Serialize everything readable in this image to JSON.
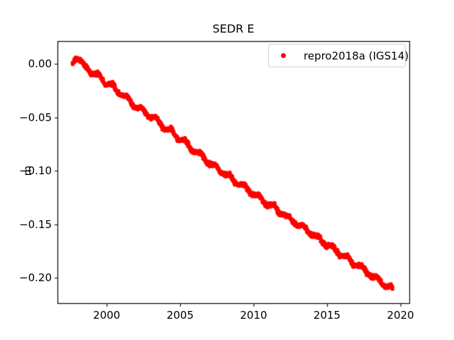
{
  "figure": {
    "background": "#ffffff",
    "text_color": "#000000"
  },
  "chart_data": {
    "type": "scatter",
    "title": "SEDR E",
    "xlabel": "",
    "ylabel": "m",
    "xlim": [
      1996.65,
      2020.6
    ],
    "ylim": [
      -0.2238,
      0.0215
    ],
    "xticks": [
      2000,
      2005,
      2010,
      2015,
      2020
    ],
    "xtick_labels": [
      "2000",
      "2005",
      "2010",
      "2015",
      "2020"
    ],
    "yticks": [
      0.0,
      -0.05,
      -0.1,
      -0.15,
      -0.2
    ],
    "ytick_labels": [
      "0.00",
      "−0.05",
      "−0.10",
      "−0.15",
      "−0.20"
    ],
    "grid": false,
    "legend": {
      "position": "upper right",
      "entries": [
        {
          "label": "repro2018a (IGS14)",
          "marker": "point",
          "color": "#ff0000"
        }
      ]
    },
    "series": [
      {
        "name": "repro2018a (IGS14)",
        "color": "#ff0000",
        "marker": "point",
        "x_range": [
          1997.7,
          2019.45
        ],
        "trend_m_per_year": -0.00993,
        "seasonal_amplitude_m": 0.0018,
        "noise_sigma_m": 0.0009,
        "points_per_year": 70,
        "trend_points": [
          [
            1997.7,
            0.0025
          ],
          [
            1997.95,
            0.0065
          ],
          [
            1998.2,
            0.002
          ],
          [
            1998.45,
            -0.002
          ],
          [
            1998.7,
            -0.003
          ],
          [
            1998.95,
            -0.008
          ],
          [
            1999.2,
            -0.011
          ],
          [
            1999.45,
            -0.0105
          ],
          [
            1999.7,
            -0.013
          ],
          [
            1999.95,
            -0.018
          ],
          [
            2000.2,
            -0.02
          ],
          [
            2000.45,
            -0.021
          ],
          [
            2000.7,
            -0.024
          ],
          [
            2000.95,
            -0.028
          ],
          [
            2001.2,
            -0.031
          ],
          [
            2001.45,
            -0.032
          ],
          [
            2001.7,
            -0.036
          ],
          [
            2001.95,
            -0.0395
          ],
          [
            2002.2,
            -0.042
          ],
          [
            2002.45,
            -0.043
          ],
          [
            2002.7,
            -0.046
          ],
          [
            2002.95,
            -0.049
          ],
          [
            2003.2,
            -0.051
          ],
          [
            2003.45,
            -0.052
          ],
          [
            2003.7,
            -0.056
          ],
          [
            2003.95,
            -0.06
          ],
          [
            2004.2,
            -0.062
          ],
          [
            2004.45,
            -0.063
          ],
          [
            2004.7,
            -0.067
          ],
          [
            2004.95,
            -0.07
          ],
          [
            2005.2,
            -0.072
          ],
          [
            2005.45,
            -0.074
          ],
          [
            2005.7,
            -0.078
          ],
          [
            2005.95,
            -0.081
          ],
          [
            2006.2,
            -0.084
          ],
          [
            2006.45,
            -0.085
          ],
          [
            2006.7,
            -0.089
          ],
          [
            2006.95,
            -0.093
          ],
          [
            2007.2,
            -0.095
          ],
          [
            2007.45,
            -0.096
          ],
          [
            2007.7,
            -0.099
          ],
          [
            2007.95,
            -0.102
          ],
          [
            2008.2,
            -0.105
          ],
          [
            2008.45,
            -0.106
          ],
          [
            2008.7,
            -0.109
          ],
          [
            2008.95,
            -0.112
          ],
          [
            2009.2,
            -0.114
          ],
          [
            2009.45,
            -0.115
          ],
          [
            2009.7,
            -0.118
          ],
          [
            2009.95,
            -0.121
          ],
          [
            2010.2,
            -0.124
          ],
          [
            2010.45,
            -0.125
          ],
          [
            2010.7,
            -0.128
          ],
          [
            2010.95,
            -0.131
          ],
          [
            2011.2,
            -0.133
          ],
          [
            2011.45,
            -0.134
          ],
          [
            2011.7,
            -0.137
          ],
          [
            2011.95,
            -0.14
          ],
          [
            2012.2,
            -0.143
          ],
          [
            2012.45,
            -0.144
          ],
          [
            2012.7,
            -0.147
          ],
          [
            2012.95,
            -0.15
          ],
          [
            2013.2,
            -0.152
          ],
          [
            2013.45,
            -0.153
          ],
          [
            2013.7,
            -0.156
          ],
          [
            2013.95,
            -0.159
          ],
          [
            2014.2,
            -0.162
          ],
          [
            2014.45,
            -0.163
          ],
          [
            2014.7,
            -0.166
          ],
          [
            2014.95,
            -0.169
          ],
          [
            2015.2,
            -0.171
          ],
          [
            2015.45,
            -0.172
          ],
          [
            2015.7,
            -0.175
          ],
          [
            2015.95,
            -0.178
          ],
          [
            2016.2,
            -0.181
          ],
          [
            2016.45,
            -0.182
          ],
          [
            2016.7,
            -0.185
          ],
          [
            2016.95,
            -0.188
          ],
          [
            2017.2,
            -0.19
          ],
          [
            2017.45,
            -0.191
          ],
          [
            2017.7,
            -0.194
          ],
          [
            2017.95,
            -0.197
          ],
          [
            2018.2,
            -0.2
          ],
          [
            2018.45,
            -0.201
          ],
          [
            2018.7,
            -0.204
          ],
          [
            2018.95,
            -0.207
          ],
          [
            2019.2,
            -0.209
          ],
          [
            2019.45,
            -0.2105
          ]
        ]
      }
    ]
  }
}
